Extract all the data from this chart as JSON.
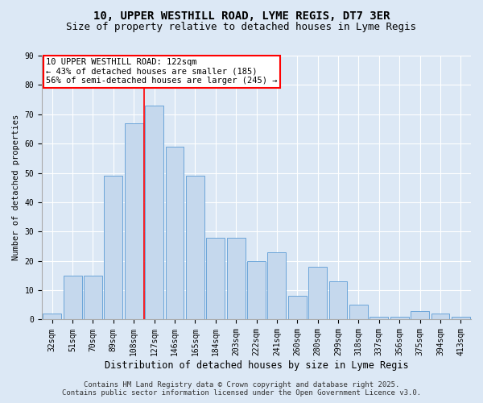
{
  "title_line1": "10, UPPER WESTHILL ROAD, LYME REGIS, DT7 3ER",
  "title_line2": "Size of property relative to detached houses in Lyme Regis",
  "xlabel": "Distribution of detached houses by size in Lyme Regis",
  "ylabel": "Number of detached properties",
  "categories": [
    "32sqm",
    "51sqm",
    "70sqm",
    "89sqm",
    "108sqm",
    "127sqm",
    "146sqm",
    "165sqm",
    "184sqm",
    "203sqm",
    "222sqm",
    "241sqm",
    "260sqm",
    "280sqm",
    "299sqm",
    "318sqm",
    "337sqm",
    "356sqm",
    "375sqm",
    "394sqm",
    "413sqm"
  ],
  "values": [
    2,
    15,
    15,
    49,
    67,
    73,
    59,
    49,
    28,
    28,
    20,
    23,
    8,
    18,
    13,
    5,
    1,
    1,
    3,
    2,
    1
  ],
  "bar_color": "#c5d8ed",
  "bar_edge_color": "#5b9bd5",
  "red_line_after_index": 4,
  "annotation_text": "10 UPPER WESTHILL ROAD: 122sqm\n← 43% of detached houses are smaller (185)\n56% of semi-detached houses are larger (245) →",
  "annotation_box_color": "white",
  "annotation_box_edge": "red",
  "ylim": [
    0,
    90
  ],
  "yticks": [
    0,
    10,
    20,
    30,
    40,
    50,
    60,
    70,
    80,
    90
  ],
  "bg_color": "#dce8f5",
  "plot_bg_color": "#dce8f5",
  "grid_color": "white",
  "footer_line1": "Contains HM Land Registry data © Crown copyright and database right 2025.",
  "footer_line2": "Contains public sector information licensed under the Open Government Licence v3.0.",
  "title_fontsize": 10,
  "subtitle_fontsize": 9,
  "annotation_fontsize": 7.5,
  "footer_fontsize": 6.5,
  "ylabel_fontsize": 7.5,
  "xlabel_fontsize": 8.5,
  "tick_fontsize": 7
}
